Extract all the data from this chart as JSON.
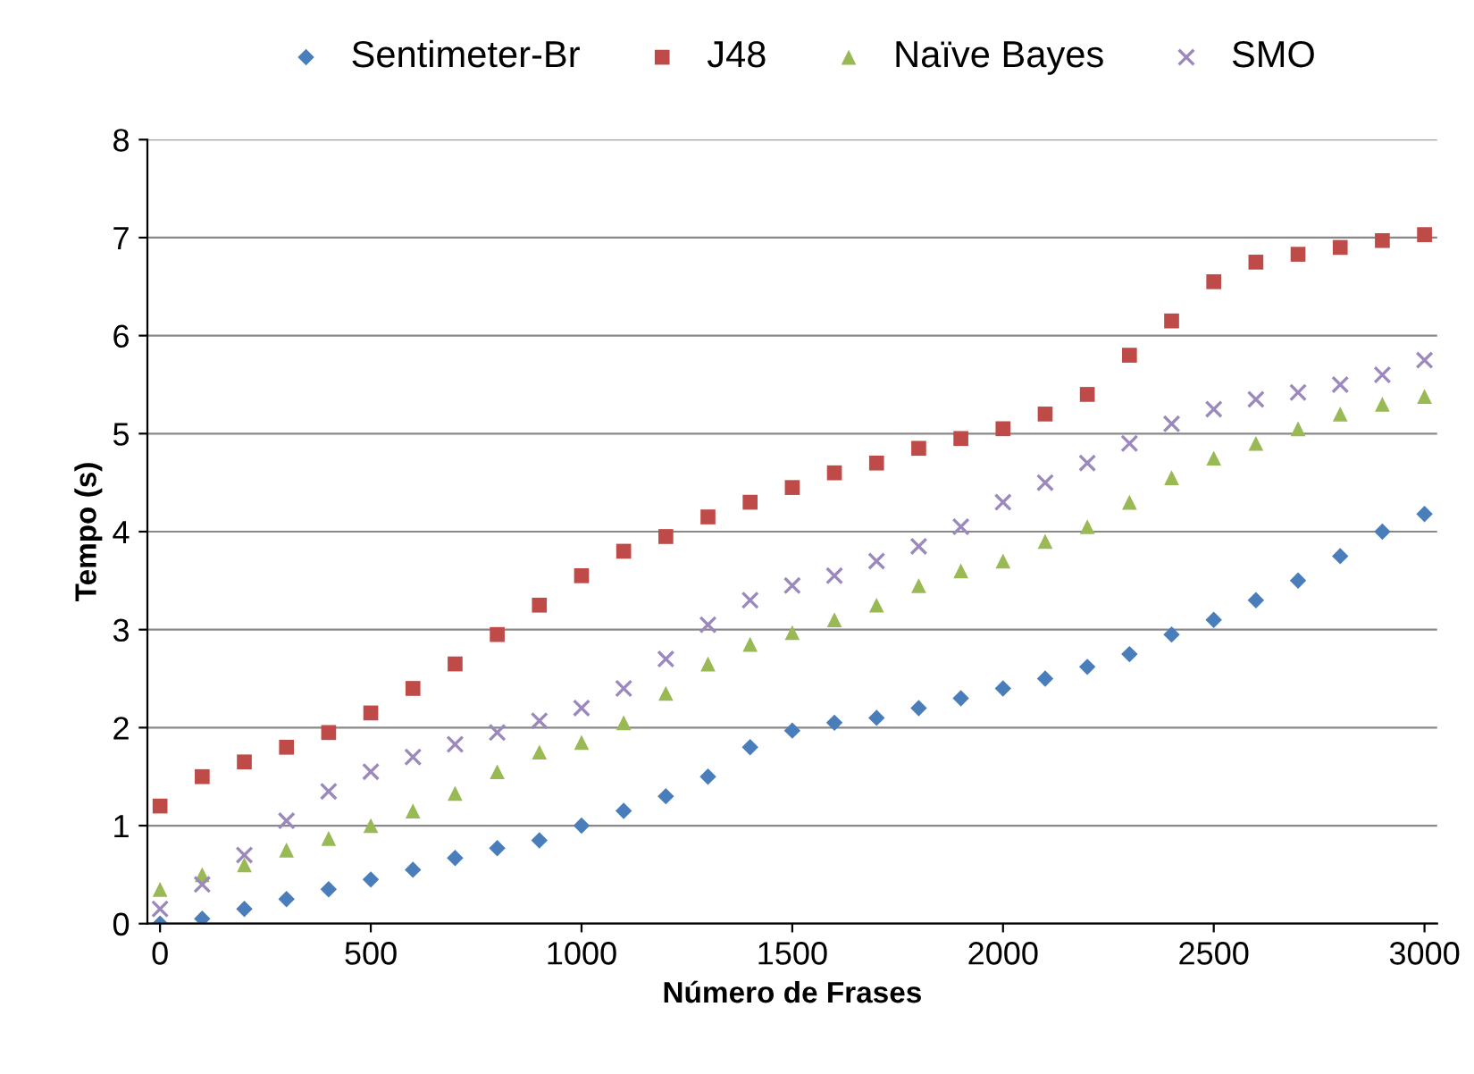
{
  "chart_data": {
    "type": "scatter",
    "xlabel": "Número de Frases",
    "ylabel": "Tempo (s)",
    "x": [
      0,
      100,
      200,
      300,
      400,
      500,
      600,
      700,
      800,
      900,
      1000,
      1100,
      1200,
      1300,
      1400,
      1500,
      1600,
      1700,
      1800,
      1900,
      2000,
      2100,
      2200,
      2300,
      2400,
      2500,
      2600,
      2700,
      2800,
      2900,
      3000
    ],
    "series": [
      {
        "name": "Sentimeter-Br",
        "color": "#4a7ebb",
        "marker": "diamond",
        "values": [
          0,
          0.05,
          0.15,
          0.25,
          0.35,
          0.45,
          0.55,
          0.67,
          0.77,
          0.85,
          1.0,
          1.15,
          1.3,
          1.5,
          1.8,
          1.97,
          2.05,
          2.1,
          2.2,
          2.3,
          2.4,
          2.5,
          2.62,
          2.75,
          2.95,
          3.1,
          3.3,
          3.5,
          3.75,
          4.0,
          4.18
        ]
      },
      {
        "name": "J48",
        "color": "#be4b48",
        "marker": "square",
        "values": [
          1.2,
          1.5,
          1.65,
          1.8,
          1.95,
          2.15,
          2.4,
          2.65,
          2.95,
          3.25,
          3.55,
          3.8,
          3.95,
          4.15,
          4.3,
          4.45,
          4.6,
          4.7,
          4.85,
          4.95,
          5.05,
          5.2,
          5.4,
          5.8,
          6.15,
          6.55,
          6.75,
          6.83,
          6.9,
          6.97,
          7.03
        ]
      },
      {
        "name": "Naïve Bayes",
        "color": "#98b954",
        "marker": "triangle",
        "values": [
          0.35,
          0.5,
          0.6,
          0.75,
          0.87,
          1.0,
          1.15,
          1.33,
          1.55,
          1.75,
          1.85,
          2.05,
          2.35,
          2.65,
          2.85,
          2.97,
          3.1,
          3.25,
          3.45,
          3.6,
          3.7,
          3.9,
          4.05,
          4.3,
          4.55,
          4.75,
          4.9,
          5.05,
          5.2,
          5.3,
          5.38
        ]
      },
      {
        "name": "SMO",
        "color": "#9b88bd",
        "marker": "cross",
        "values": [
          0.15,
          0.4,
          0.7,
          1.05,
          1.35,
          1.55,
          1.7,
          1.83,
          1.95,
          2.07,
          2.2,
          2.4,
          2.7,
          3.05,
          3.3,
          3.45,
          3.55,
          3.7,
          3.85,
          4.05,
          4.3,
          4.5,
          4.7,
          4.9,
          5.1,
          5.25,
          5.35,
          5.42,
          5.5,
          5.6,
          5.75
        ]
      }
    ],
    "xlim": [
      -30,
      3030
    ],
    "xticks": [
      0,
      500,
      1000,
      1500,
      2000,
      2500,
      3000
    ],
    "ylim": [
      0,
      8
    ],
    "yticks": [
      0,
      1,
      2,
      3,
      4,
      5,
      6,
      7,
      8
    ],
    "grid": "y",
    "legend": "top"
  }
}
